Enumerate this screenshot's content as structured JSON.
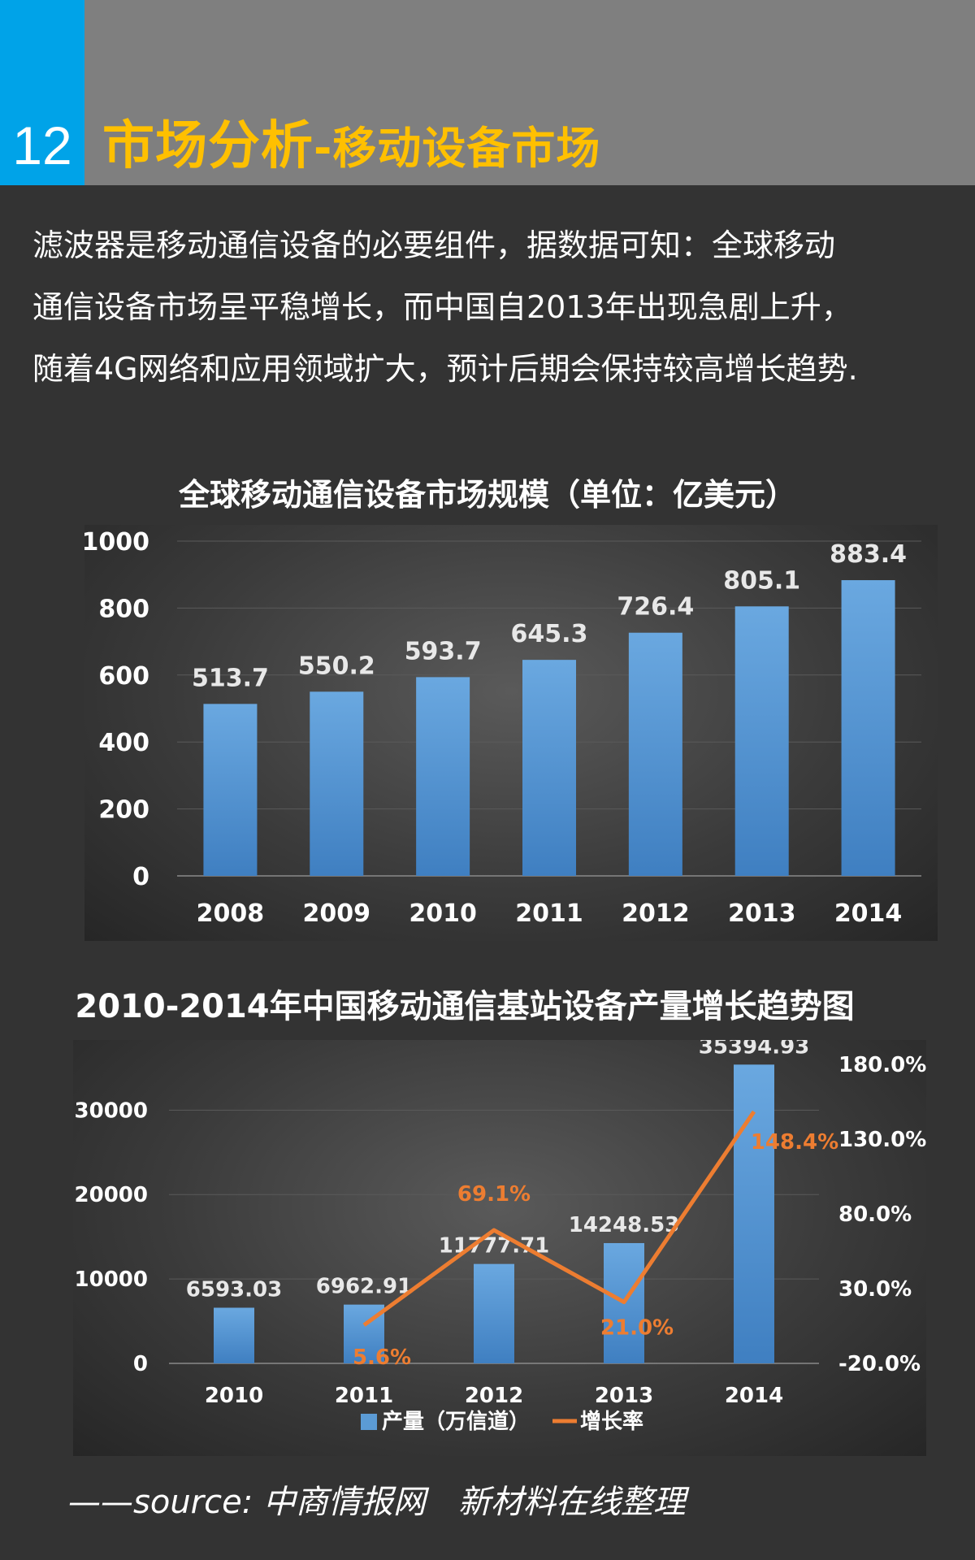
{
  "header": {
    "page_number": "12",
    "title_main": "市场分析",
    "title_sub": "-移动设备市场"
  },
  "intro": {
    "lines": [
      "滤波器是移动通信设备的必要组件，据数据可知：全球移动",
      "通信设备市场呈平稳增长，而中国自2013年出现急剧上升，",
      "随着4G网络和应用领域扩大，预计后期会保持较高增长趋势."
    ]
  },
  "colors": {
    "bar": "#5b9bd5",
    "line": "#ed7d31",
    "accent": "#ffc000",
    "badge": "#00a3e8"
  },
  "chart_data": [
    {
      "type": "bar",
      "title": "全球移动通信设备市场规模（单位：亿美元）",
      "categories": [
        "2008",
        "2009",
        "2010",
        "2011",
        "2012",
        "2013",
        "2014"
      ],
      "values": [
        513.7,
        550.2,
        593.7,
        645.3,
        726.4,
        805.1,
        883.4
      ],
      "data_labels": [
        "513.7",
        "550.2",
        "593.7",
        "645.3",
        "726.4",
        "805.1",
        "883.4"
      ],
      "ylim": [
        0,
        1000
      ],
      "yticks": [
        "0",
        "200",
        "400",
        "600",
        "800",
        "1000"
      ],
      "grid": true
    },
    {
      "type": "bar+line",
      "title": "2010-2014年中国移动通信基站设备产量增长趋势图",
      "categories": [
        "2010",
        "2011",
        "2012",
        "2013",
        "2014"
      ],
      "series": [
        {
          "name": "产量（万信道）",
          "type": "bar",
          "values": [
            6593.03,
            6962.91,
            11777.71,
            14248.53,
            35394.93
          ],
          "data_labels": [
            "6593.03",
            "6962.91",
            "11777.71",
            "14248.53",
            "35394.93"
          ]
        },
        {
          "name": "增长率",
          "type": "line",
          "axis": "right",
          "x": [
            "2011",
            "2012",
            "2013",
            "2014"
          ],
          "values": [
            5.6,
            69.1,
            21.0,
            148.4
          ],
          "data_labels": [
            "5.6%",
            "69.1%",
            "21.0%",
            "148.4%"
          ]
        }
      ],
      "ylim": [
        0,
        36000
      ],
      "yticks": [
        "0",
        "10000",
        "20000",
        "30000"
      ],
      "y2lim": [
        -20,
        180
      ],
      "y2ticks": [
        "-20.0%",
        "30.0%",
        "80.0%",
        "130.0%",
        "180.0%"
      ],
      "legend_position": "bottom",
      "grid": true
    }
  ],
  "source": {
    "text": "——source:  中商情报网",
    "note": "新材料在线整理"
  }
}
